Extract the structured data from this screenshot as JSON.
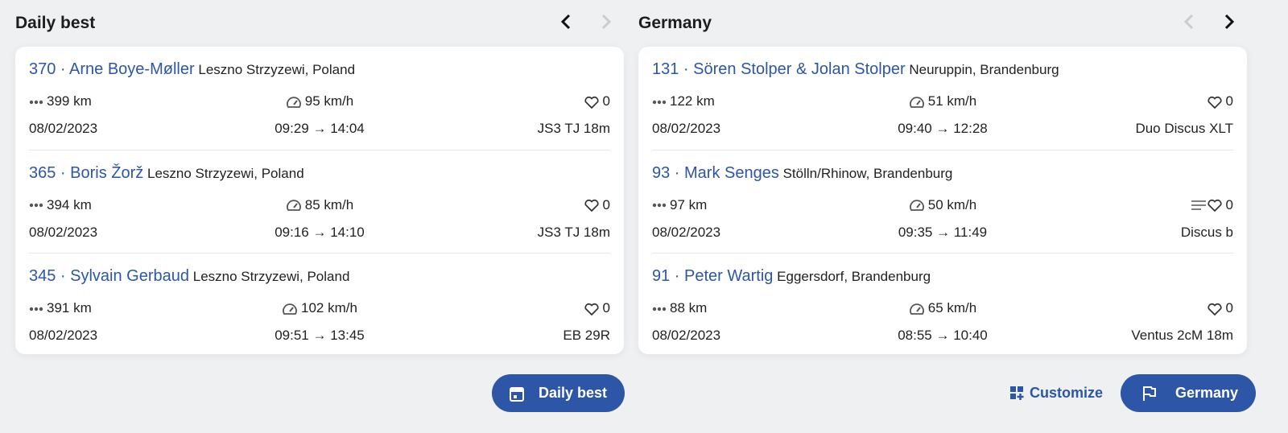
{
  "accent": "#2d56a6",
  "panels": [
    {
      "title": "Daily best",
      "prev_enabled": true,
      "next_enabled": false,
      "button_label": "Daily best",
      "button_icon": "calendar-icon",
      "rows": [
        {
          "title": "370 · Arne Boye-Møller",
          "location": "Leszno Strzyzewi, Poland",
          "distance": "399 km",
          "speed": "95 km/h",
          "likes": "0",
          "has_comments": false,
          "date": "08/02/2023",
          "time": "09:29 → 14:04",
          "aircraft": "JS3 TJ 18m"
        },
        {
          "title": "365 · Boris Žorž",
          "location": "Leszno Strzyzewi, Poland",
          "distance": "394 km",
          "speed": "85 km/h",
          "likes": "0",
          "has_comments": false,
          "date": "08/02/2023",
          "time": "09:16 → 14:10",
          "aircraft": "JS3 TJ 18m"
        },
        {
          "title": "345 · Sylvain Gerbaud",
          "location": "Leszno Strzyzewi, Poland",
          "distance": "391 km",
          "speed": "102 km/h",
          "likes": "0",
          "has_comments": false,
          "date": "08/02/2023",
          "time": "09:51 → 13:45",
          "aircraft": "EB 29R"
        }
      ]
    },
    {
      "title": "Germany",
      "prev_enabled": false,
      "next_enabled": true,
      "button_label": "Germany",
      "button_icon": "flag-icon",
      "customize_label": "Customize",
      "rows": [
        {
          "title": "131 · Sören Stolper & Jolan Stolper",
          "location": "Neuruppin, Brandenburg",
          "distance": "122 km",
          "speed": "51 km/h",
          "likes": "0",
          "has_comments": false,
          "date": "08/02/2023",
          "time": "09:40 → 12:28",
          "aircraft": "Duo Discus XLT"
        },
        {
          "title": "93 · Mark Senges",
          "location": "Stölln/Rhinow, Brandenburg",
          "distance": "97 km",
          "speed": "50 km/h",
          "likes": "0",
          "has_comments": true,
          "date": "08/02/2023",
          "time": "09:35 → 11:49",
          "aircraft": "Discus b"
        },
        {
          "title": "91 · Peter Wartig",
          "location": "Eggersdorf, Brandenburg",
          "distance": "88 km",
          "speed": "65 km/h",
          "likes": "0",
          "has_comments": false,
          "date": "08/02/2023",
          "time": "08:55 → 10:40",
          "aircraft": "Ventus 2cM 18m"
        }
      ]
    }
  ]
}
